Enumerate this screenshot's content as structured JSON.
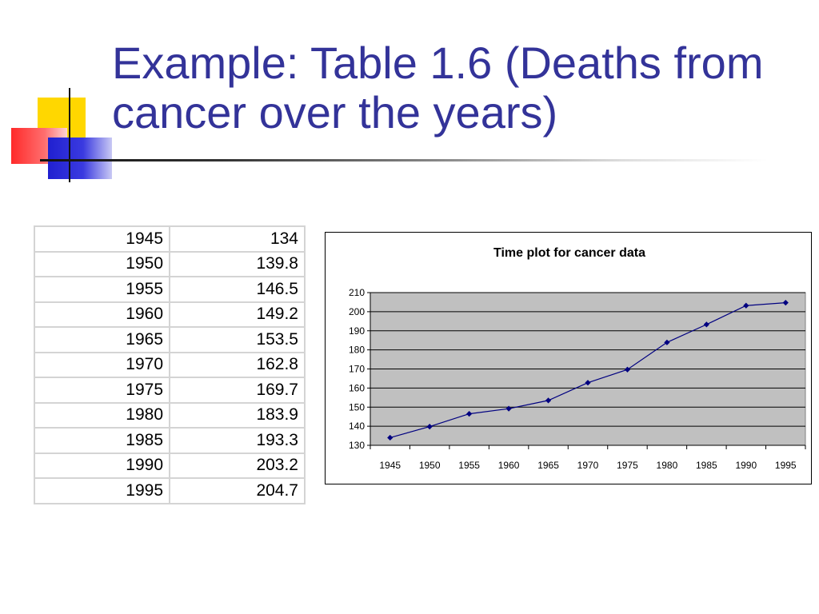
{
  "slide": {
    "title": "Example: Table 1.6 (Deaths from cancer over the years)"
  },
  "table": {
    "rows": [
      {
        "year": "1945",
        "value": "134"
      },
      {
        "year": "1950",
        "value": "139.8"
      },
      {
        "year": "1955",
        "value": "146.5"
      },
      {
        "year": "1960",
        "value": "149.2"
      },
      {
        "year": "1965",
        "value": "153.5"
      },
      {
        "year": "1970",
        "value": "162.8"
      },
      {
        "year": "1975",
        "value": "169.7"
      },
      {
        "year": "1980",
        "value": "183.9"
      },
      {
        "year": "1985",
        "value": "193.3"
      },
      {
        "year": "1990",
        "value": "203.2"
      },
      {
        "year": "1995",
        "value": "204.7"
      }
    ]
  },
  "colors": {
    "title": "#333399",
    "plot_area": "#c0c0c0",
    "series_line": "#000080"
  },
  "chart_data": {
    "type": "line",
    "title": "Time plot for cancer data",
    "xlabel": "",
    "ylabel": "",
    "categories": [
      "1945",
      "1950",
      "1955",
      "1960",
      "1965",
      "1970",
      "1975",
      "1980",
      "1985",
      "1990",
      "1995"
    ],
    "series": [
      {
        "values": [
          134,
          139.8,
          146.5,
          149.2,
          153.5,
          162.8,
          169.7,
          183.9,
          193.3,
          203.2,
          204.7
        ]
      }
    ],
    "ylim": [
      130,
      210
    ],
    "yticks": [
      130,
      140,
      150,
      160,
      170,
      180,
      190,
      200,
      210
    ],
    "grid": true,
    "legend": "none",
    "marker": "diamond"
  }
}
